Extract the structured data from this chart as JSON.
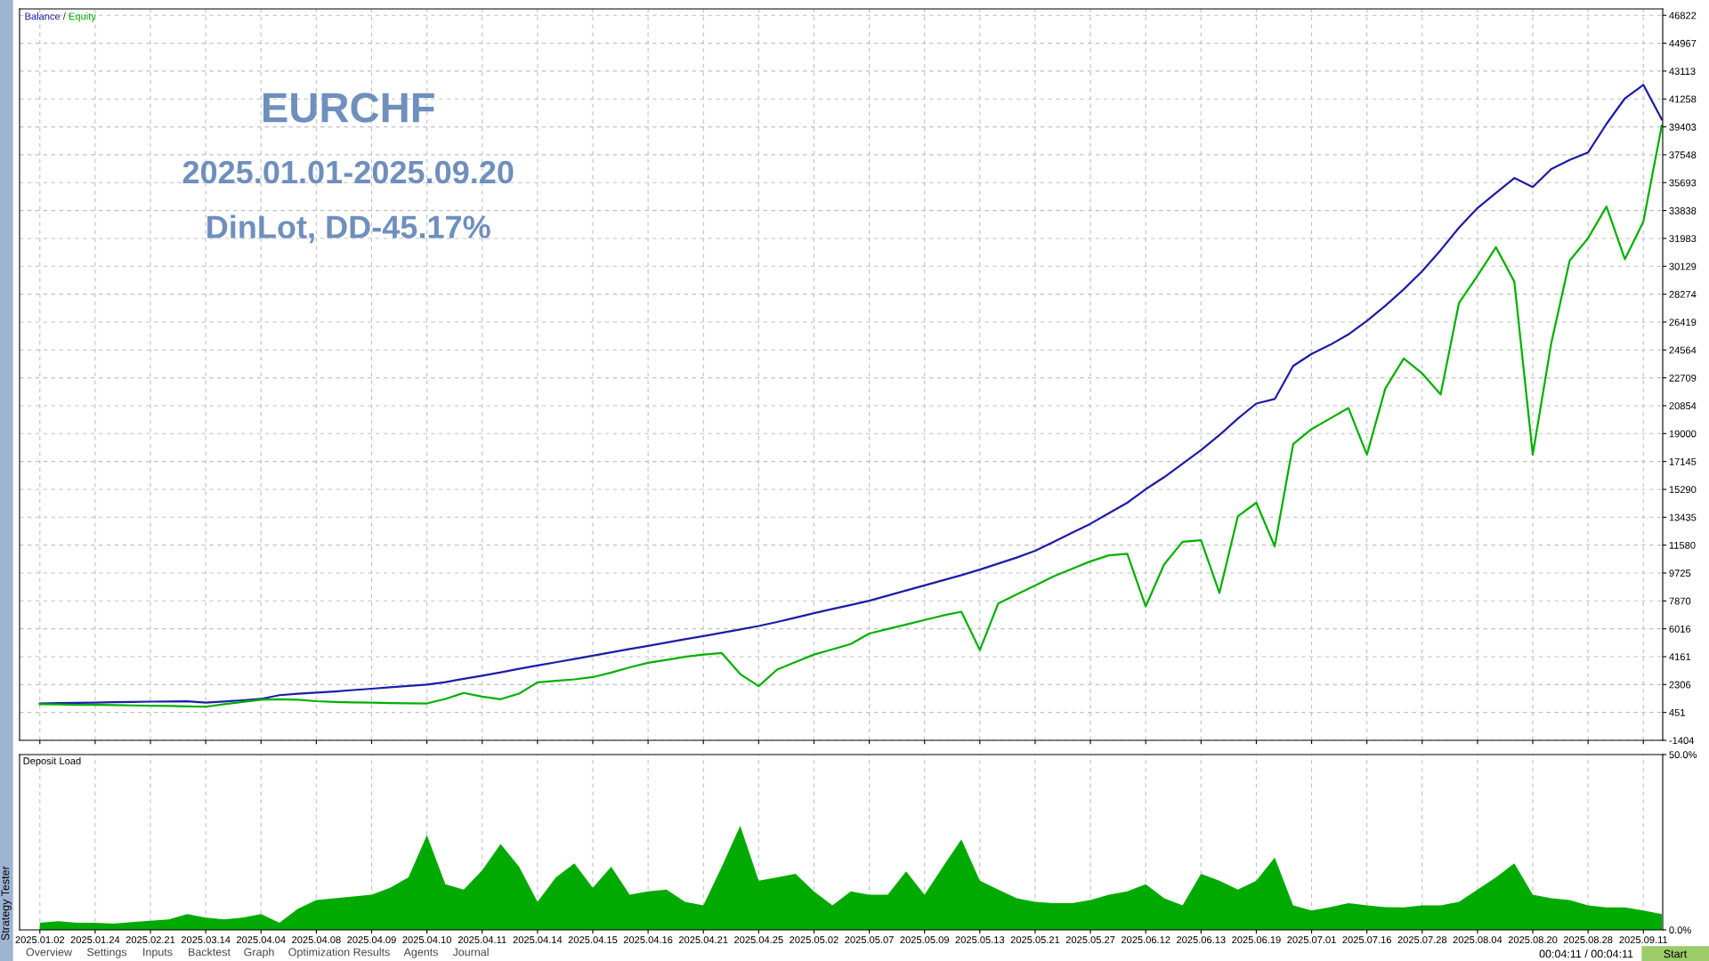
{
  "chart_data": [
    {
      "type": "line",
      "legend": "top left",
      "grid": true,
      "tick_labels": "y",
      "categories": [
        null,
        null,
        null,
        null,
        null,
        null,
        null,
        null,
        null,
        null,
        null,
        null,
        null,
        null,
        null,
        null,
        null,
        null,
        null,
        null,
        null,
        null,
        null,
        null,
        null,
        null,
        null,
        null,
        null,
        null,
        null,
        null,
        null,
        null,
        null,
        null,
        null,
        null,
        null,
        null,
        null,
        null,
        null,
        null,
        null,
        null,
        null,
        null,
        null,
        null,
        null,
        null,
        null,
        null,
        null,
        null,
        null,
        null,
        null,
        null,
        null,
        null,
        null,
        null,
        null,
        null,
        null,
        null,
        null,
        null,
        null,
        null,
        null,
        null,
        null,
        null,
        null,
        null,
        null,
        null,
        null,
        null,
        null,
        null,
        null,
        null,
        null,
        null,
        null
      ],
      "ylim": [
        -1404,
        47250
      ],
      "yticks": [
        -1404,
        451,
        2306,
        4161,
        6016,
        7870,
        9725,
        11580,
        13435,
        15290,
        17145,
        19000,
        20854,
        22709,
        24564,
        26419,
        28274,
        30129,
        31983,
        33838,
        35693,
        37548,
        39403,
        41258,
        43113,
        44967,
        46822
      ],
      "annotations": [
        "/",
        "EURCHF",
        "2025.01.01-2025.09.20",
        "DinLot, DD-45.17%"
      ],
      "series": [
        {
          "name": "Balance",
          "color": "#1c1ca8",
          "values": [
            1050,
            1070,
            1090,
            1110,
            1130,
            1150,
            1170,
            1180,
            1190,
            1100,
            1180,
            1260,
            1350,
            1600,
            1700,
            1770,
            1850,
            1940,
            2030,
            2120,
            2220,
            2300,
            2470,
            2690,
            2900,
            3120,
            3350,
            3570,
            3790,
            4010,
            4230,
            4450,
            4670,
            4880,
            5100,
            5320,
            5530,
            5750,
            5970,
            6200,
            6470,
            6760,
            7050,
            7330,
            7600,
            7880,
            8220,
            8560,
            8900,
            9240,
            9580,
            9950,
            10350,
            10750,
            11200,
            11800,
            12400,
            13000,
            13700,
            14400,
            15300,
            16100,
            17000,
            17900,
            18900,
            20000,
            21000,
            21300,
            23500,
            24300,
            24900,
            25600,
            26500,
            27500,
            28600,
            29800,
            31200,
            32700,
            34000,
            35000,
            36000,
            35400,
            36600,
            37200,
            37700,
            39600,
            41300,
            42200,
            39900
          ]
        },
        {
          "name": "Equity",
          "color": "#00b000",
          "values": [
            1000,
            980,
            960,
            950,
            940,
            920,
            900,
            880,
            850,
            830,
            1000,
            1150,
            1300,
            1330,
            1300,
            1200,
            1150,
            1120,
            1100,
            1080,
            1060,
            1050,
            1350,
            1750,
            1500,
            1330,
            1700,
            2450,
            2550,
            2650,
            2800,
            3100,
            3450,
            3750,
            3950,
            4150,
            4300,
            4400,
            3000,
            2200,
            3300,
            3800,
            4300,
            4650,
            5000,
            5700,
            6000,
            6300,
            6600,
            6900,
            7150,
            4600,
            7700,
            8300,
            8900,
            9500,
            10000,
            10500,
            10900,
            11000,
            7500,
            10300,
            11800,
            11900,
            8400,
            13500,
            14400,
            11500,
            18300,
            19300,
            20000,
            20700,
            17600,
            22000,
            24000,
            23000,
            21600,
            27700,
            29500,
            31400,
            29100,
            17600,
            25000,
            30500,
            32000,
            34100,
            30600,
            33100,
            39500
          ]
        }
      ]
    },
    {
      "type": "area",
      "title": "Deposit Load",
      "grid": "x",
      "color": "#00aa00",
      "categories": [
        "2025.01.02",
        null,
        null,
        "2025.01.24",
        null,
        null,
        "2025.02.21",
        null,
        null,
        "2025.03.14",
        null,
        null,
        "2025.04.04",
        null,
        null,
        "2025.04.08",
        null,
        null,
        "2025.04.09",
        null,
        null,
        "2025.04.10",
        null,
        null,
        "2025.04.11",
        null,
        null,
        "2025.04.14",
        null,
        null,
        "2025.04.15",
        null,
        null,
        "2025.04.16",
        null,
        null,
        "2025.04.21",
        null,
        null,
        "2025.04.25",
        null,
        null,
        "2025.05.02",
        null,
        null,
        "2025.05.07",
        null,
        null,
        "2025.05.09",
        null,
        null,
        "2025.05.13",
        null,
        null,
        "2025.05.21",
        null,
        null,
        "2025.05.27",
        null,
        null,
        "2025.06.12",
        null,
        null,
        "2025.06.13",
        null,
        null,
        "2025.06.19",
        null,
        null,
        "2025.07.01",
        null,
        null,
        "2025.07.16",
        null,
        null,
        "2025.07.28",
        null,
        null,
        "2025.08.04",
        null,
        null,
        "2025.08.20",
        null,
        null,
        "2025.08.28",
        null,
        null,
        "2025.09.11",
        null
      ],
      "ylim": [
        0,
        50
      ],
      "yticks": [
        {
          "value": 0,
          "label": "0.0%"
        },
        {
          "value": 50,
          "label": "50.0%"
        }
      ],
      "values": [
        2,
        2.5,
        2,
        2,
        1.8,
        2.2,
        2.6,
        3,
        4.5,
        3.5,
        3,
        3.5,
        4.5,
        2,
        6,
        8.5,
        9,
        9.5,
        10,
        12,
        15,
        27,
        13,
        11.5,
        17,
        24.5,
        18,
        8,
        15,
        19,
        12,
        18,
        10,
        11,
        11.5,
        8,
        7,
        18,
        29.7,
        14,
        15,
        16,
        11,
        7,
        11,
        10,
        10,
        16.7,
        10,
        18,
        25.8,
        14,
        11.5,
        9,
        8,
        7.6,
        7.6,
        8.5,
        10,
        11,
        13,
        9,
        7,
        16,
        14,
        11.5,
        14,
        20.6,
        7,
        5.5,
        6.5,
        7.6,
        7,
        6.5,
        6.4,
        7,
        7,
        8,
        11.5,
        15,
        19,
        10,
        9,
        8.5,
        7,
        6.4,
        6.4,
        5.5,
        4.5
      ]
    },
    {
      "type": "other",
      "annotations": [
        "Strategy Tester",
        "Overview",
        "Settings",
        "Inputs",
        "Backtest",
        "Graph",
        "Optimization Results",
        "Agents",
        "Journal",
        "00:04:11 / 00:04:11",
        "Start"
      ]
    }
  ]
}
